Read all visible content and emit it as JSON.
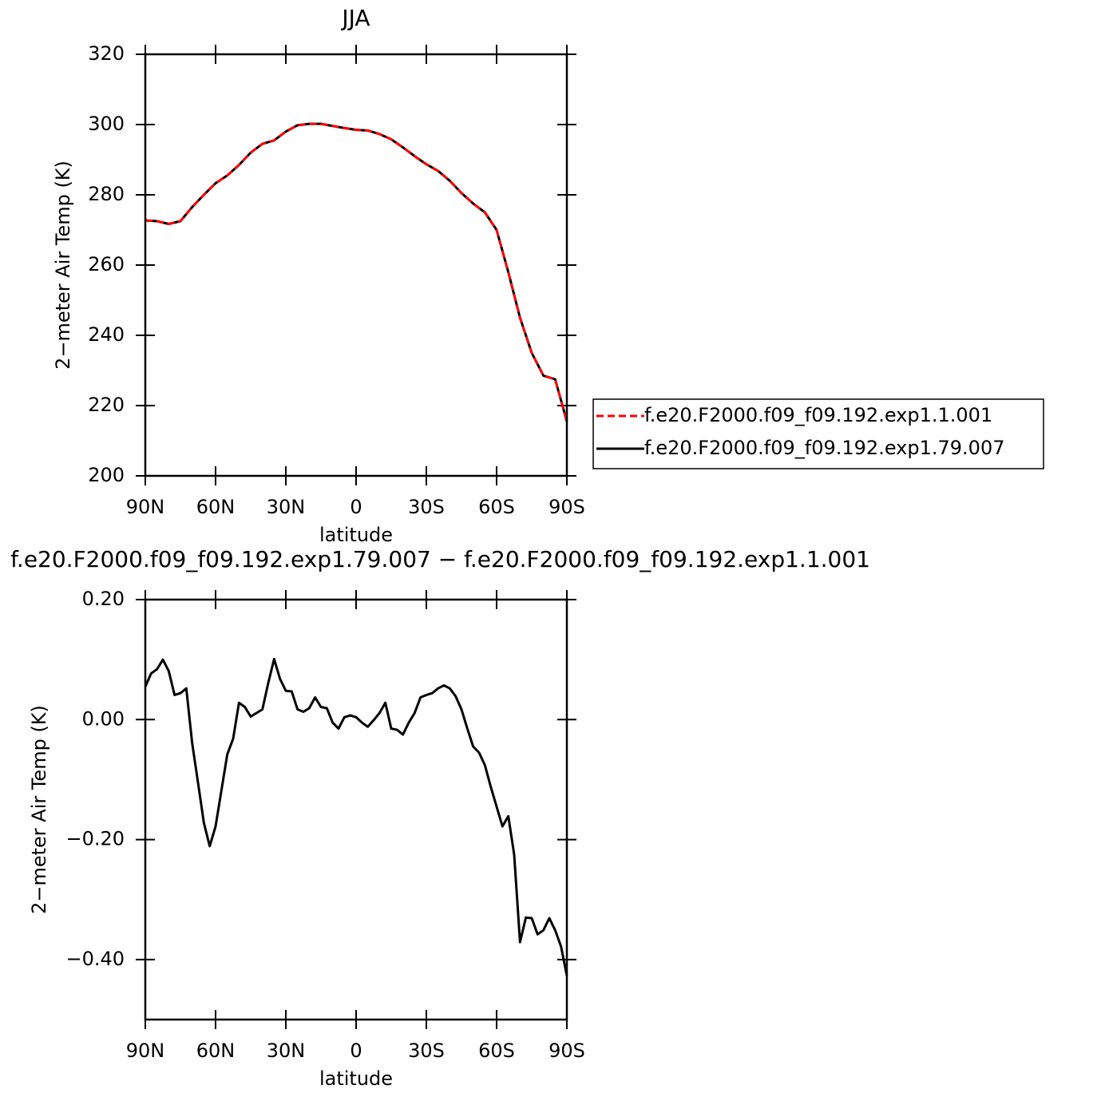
{
  "chart_data": [
    {
      "type": "line",
      "title": "JJA",
      "xlabel": "latitude",
      "ylabel": "2−meter Air Temp (K)",
      "xlim": [
        90,
        -90
      ],
      "xticks": [
        {
          "value": 90,
          "label": "90N"
        },
        {
          "value": 60,
          "label": "60N"
        },
        {
          "value": 30,
          "label": "30N"
        },
        0,
        {
          "value": -30,
          "label": "30S"
        },
        {
          "value": -60,
          "label": "60S"
        },
        {
          "value": -90,
          "label": "90S"
        }
      ],
      "ylim": [
        200,
        320
      ],
      "yticks": [
        200,
        220,
        240,
        260,
        280,
        300,
        320
      ],
      "legend": "right",
      "x": [
        90,
        85,
        80,
        75,
        70,
        65,
        60,
        55,
        50,
        45,
        40,
        35,
        30,
        25,
        20,
        15,
        10,
        5,
        0,
        -5,
        -10,
        -15,
        -20,
        -25,
        -30,
        -35,
        -40,
        -45,
        -50,
        -55,
        -60,
        -65,
        -70,
        -75,
        -80,
        -85,
        -90
      ],
      "series": [
        {
          "name": "f.e20.F2000.f09_f09.192.exp1.1.001",
          "color": "#ff0000",
          "dash": true,
          "values": [
            272.7,
            272.5,
            271.7,
            272.5,
            276.5,
            280,
            283.3,
            285.5,
            288.5,
            292,
            294.5,
            295.5,
            298,
            299.8,
            300.2,
            300.2,
            299.6,
            299,
            298.5,
            298.3,
            297.3,
            295.8,
            293.5,
            291,
            288.7,
            286.8,
            284,
            280.5,
            277.5,
            275,
            270,
            258,
            245,
            235,
            228.5,
            227.5,
            215.5
          ]
        },
        {
          "name": "f.e20.F2000.f09_f09.192.exp1.79.007",
          "color": "#000000",
          "dash": false,
          "values": [
            272.7,
            272.5,
            271.7,
            272.5,
            276.5,
            280,
            283.3,
            285.5,
            288.5,
            292,
            294.5,
            295.5,
            298,
            299.8,
            300.2,
            300.2,
            299.6,
            299,
            298.5,
            298.3,
            297.3,
            295.8,
            293.5,
            291,
            288.7,
            286.8,
            284,
            280.5,
            277.5,
            275,
            270,
            258,
            245,
            235,
            228.5,
            227.5,
            215.5
          ]
        }
      ]
    },
    {
      "type": "line",
      "title": "f.e20.F2000.f09_f09.192.exp1.79.007 − f.e20.F2000.f09_f09.192.exp1.1.001",
      "xlabel": "latitude",
      "ylabel": "2−meter Air Temp (K)",
      "xlim": [
        90,
        -90
      ],
      "xticks": [
        {
          "value": 90,
          "label": "90N"
        },
        {
          "value": 60,
          "label": "60N"
        },
        {
          "value": 30,
          "label": "30N"
        },
        0,
        {
          "value": -30,
          "label": "30S"
        },
        {
          "value": -60,
          "label": "60S"
        },
        {
          "value": -90,
          "label": "90S"
        }
      ],
      "ylim": [
        -0.5,
        0.2
      ],
      "yticks": [
        {
          "value": -0.4,
          "label": "−0.40"
        },
        {
          "value": -0.2,
          "label": "−0.20"
        },
        {
          "value": 0,
          "label": "0.00"
        },
        {
          "value": 0.2,
          "label": "0.20"
        }
      ],
      "x": [
        90,
        87.5,
        85,
        82.5,
        80,
        77.5,
        75,
        72.5,
        70,
        67.5,
        65,
        62.5,
        60,
        57.5,
        55,
        52.5,
        50,
        47.5,
        45,
        42.5,
        40,
        37.5,
        35,
        32.5,
        30,
        27.5,
        25,
        22.5,
        20,
        17.5,
        15,
        12.5,
        10,
        7.5,
        5,
        2.5,
        0,
        -2.5,
        -5,
        -7.5,
        -10,
        -12.5,
        -15,
        -17.5,
        -20,
        -22.5,
        -25,
        -27.5,
        -30,
        -32.5,
        -35,
        -37.5,
        -40,
        -42.5,
        -45,
        -47.5,
        -50,
        -52.5,
        -55,
        -57.5,
        -60,
        -62.5,
        -65,
        -67.5,
        -70,
        -72.5,
        -75,
        -77.5,
        -80,
        -82.5,
        -85,
        -87.5,
        -90
      ],
      "series": [
        {
          "color": "#000000",
          "dash": false,
          "values": [
            0.055,
            0.077,
            0.084,
            0.1,
            0.081,
            0.041,
            0.044,
            0.052,
            -0.039,
            -0.105,
            -0.172,
            -0.211,
            -0.178,
            -0.118,
            -0.058,
            -0.032,
            0.028,
            0.021,
            0.005,
            0.011,
            0.017,
            0.061,
            0.101,
            0.068,
            0.048,
            0.047,
            0.017,
            0.013,
            0.019,
            0.037,
            0.021,
            0.019,
            -0.005,
            -0.015,
            0.004,
            0.007,
            0.004,
            -0.005,
            -0.012,
            -0.001,
            0.011,
            0.028,
            -0.015,
            -0.017,
            -0.025,
            -0.005,
            0.011,
            0.037,
            0.041,
            0.044,
            0.052,
            0.057,
            0.052,
            0.039,
            0.017,
            -0.015,
            -0.045,
            -0.055,
            -0.076,
            -0.112,
            -0.145,
            -0.178,
            -0.161,
            -0.225,
            -0.371,
            -0.33,
            -0.331,
            -0.358,
            -0.351,
            -0.331,
            -0.351,
            -0.378,
            -0.427
          ]
        }
      ]
    }
  ]
}
